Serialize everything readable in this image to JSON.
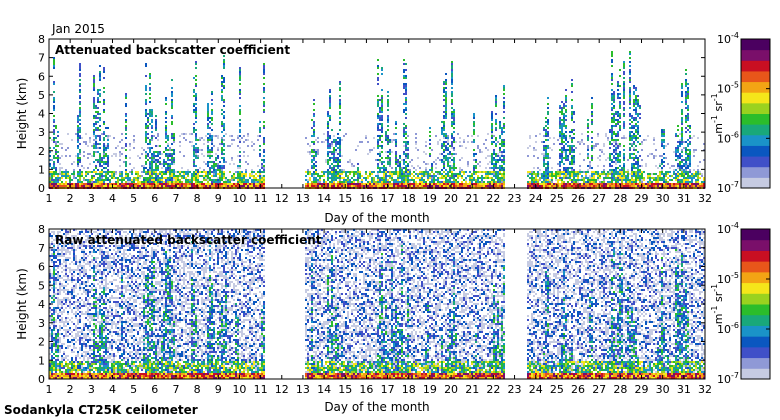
{
  "header": {
    "month_label": "Jan 2015"
  },
  "footer": {
    "site_label": "Sodankyla CT25K ceilometer"
  },
  "colors": {
    "colormap": [
      "#c6cbe2",
      "#8f99d6",
      "#4050c8",
      "#0a57c0",
      "#1a93c8",
      "#19a87a",
      "#2bbd2b",
      "#9ad21f",
      "#f5e61a",
      "#f3a414",
      "#e8561a",
      "#c90f22",
      "#7a0f6a",
      "#4b0060"
    ],
    "missing_data": "#ffffff"
  },
  "chart_data": [
    {
      "type": "heatmap",
      "title": "Attenuated backscatter coefficient",
      "xlabel": "Day of the month",
      "ylabel": "Height (km)",
      "xlim": [
        1,
        32
      ],
      "ylim": [
        0,
        8
      ],
      "x_ticks": [
        "1",
        "2",
        "3",
        "4",
        "5",
        "6",
        "7",
        "8",
        "9",
        "10",
        "11",
        "12",
        "13",
        "14",
        "15",
        "16",
        "17",
        "18",
        "19",
        "20",
        "21",
        "22",
        "23",
        "24",
        "25",
        "26",
        "27",
        "28",
        "29",
        "30",
        "31",
        "32"
      ],
      "y_ticks": [
        "0",
        "1",
        "2",
        "3",
        "4",
        "5",
        "6",
        "7",
        "8"
      ],
      "colorbar": {
        "label": "m",
        "label_exp1": "-1",
        "label_mid": " sr",
        "label_exp2": "-1",
        "scale": "log",
        "range": [
          1e-07,
          0.0001
        ],
        "ticks": [
          {
            "base": "10",
            "exp": "-7"
          },
          {
            "base": "10",
            "exp": "-6"
          },
          {
            "base": "10",
            "exp": "-5"
          },
          {
            "base": "10",
            "exp": "-4"
          }
        ]
      },
      "data_gaps_days": [
        [
          11.15,
          13.05
        ],
        [
          22.5,
          23.55
        ]
      ],
      "noise_level": "low"
    },
    {
      "type": "heatmap",
      "title": "Raw attenuated backscatter coefficient",
      "xlabel": "Day of the month",
      "ylabel": "Height (km)",
      "xlim": [
        1,
        32
      ],
      "ylim": [
        0,
        8
      ],
      "x_ticks": [
        "1",
        "2",
        "3",
        "4",
        "5",
        "6",
        "7",
        "8",
        "9",
        "10",
        "11",
        "12",
        "13",
        "14",
        "15",
        "16",
        "17",
        "18",
        "19",
        "20",
        "21",
        "22",
        "23",
        "24",
        "25",
        "26",
        "27",
        "28",
        "29",
        "30",
        "31",
        "32"
      ],
      "y_ticks": [
        "0",
        "1",
        "2",
        "3",
        "4",
        "5",
        "6",
        "7",
        "8"
      ],
      "colorbar": {
        "label": "m",
        "label_exp1": "-1",
        "label_mid": " sr",
        "label_exp2": "-1",
        "scale": "log",
        "range": [
          1e-07,
          0.0001
        ],
        "ticks": [
          {
            "base": "10",
            "exp": "-7"
          },
          {
            "base": "10",
            "exp": "-6"
          },
          {
            "base": "10",
            "exp": "-5"
          },
          {
            "base": "10",
            "exp": "-4"
          }
        ]
      },
      "data_gaps_days": [
        [
          11.15,
          13.05
        ],
        [
          22.5,
          23.55
        ]
      ],
      "noise_level": "high"
    }
  ]
}
